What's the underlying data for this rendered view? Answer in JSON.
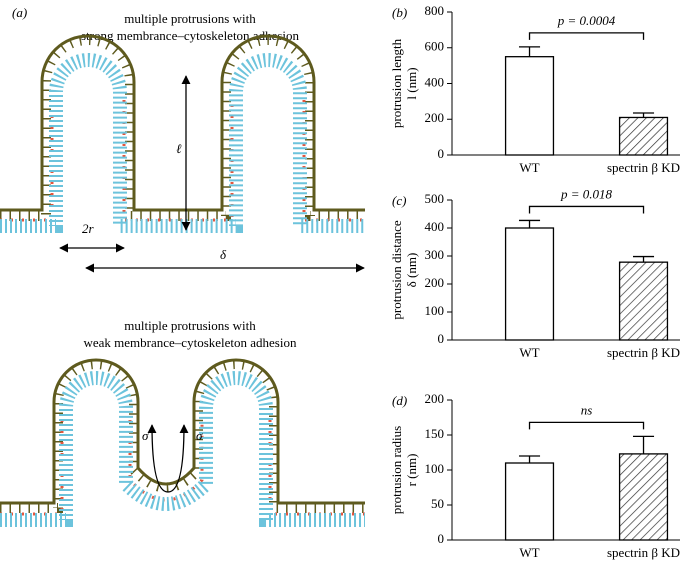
{
  "diagram": {
    "panel_label": "(a)",
    "top_title": [
      "multiple protrusions with",
      "strong membrance–cytoskeleton adhesion"
    ],
    "bottom_title": [
      "multiple protrusions with",
      "weak membrance–cytoskeleton adhesion"
    ],
    "length_label": "ℓ",
    "radius_label": "2r",
    "distance_label": "δ",
    "tension_labels": [
      "σ",
      "σ"
    ]
  },
  "chart_data": [
    {
      "type": "bar",
      "panel_label": "(b)",
      "ylabel": [
        "protrusion length",
        "l (nm)"
      ],
      "categories": [
        "WT",
        "spectrin β KD"
      ],
      "series": [
        {
          "values": [
            550,
            210
          ],
          "errors": [
            55,
            25
          ],
          "hatched": [
            false,
            true
          ]
        }
      ],
      "annotation": "p = 0.0004",
      "ylim": [
        0,
        800
      ],
      "yticks": [
        0,
        200,
        400,
        600,
        800
      ]
    },
    {
      "type": "bar",
      "panel_label": "(c)",
      "ylabel": [
        "protrusion distance",
        "δ (nm)"
      ],
      "categories": [
        "WT",
        "spectrin β KD"
      ],
      "series": [
        {
          "values": [
            400,
            278
          ],
          "errors": [
            27,
            20
          ],
          "hatched": [
            false,
            true
          ]
        }
      ],
      "annotation": "p = 0.018",
      "ylim": [
        0,
        500
      ],
      "yticks": [
        0,
        100,
        200,
        300,
        400,
        500
      ]
    },
    {
      "type": "bar",
      "panel_label": "(d)",
      "ylabel": [
        "protrusion radius",
        "r (nm)"
      ],
      "categories": [
        "WT",
        "spectrin β KD"
      ],
      "series": [
        {
          "values": [
            110,
            123
          ],
          "errors": [
            10,
            25
          ],
          "hatched": [
            false,
            true
          ]
        }
      ],
      "annotation": "ns",
      "ylim": [
        0,
        200
      ],
      "yticks": [
        0,
        50,
        100,
        150,
        200
      ]
    }
  ]
}
